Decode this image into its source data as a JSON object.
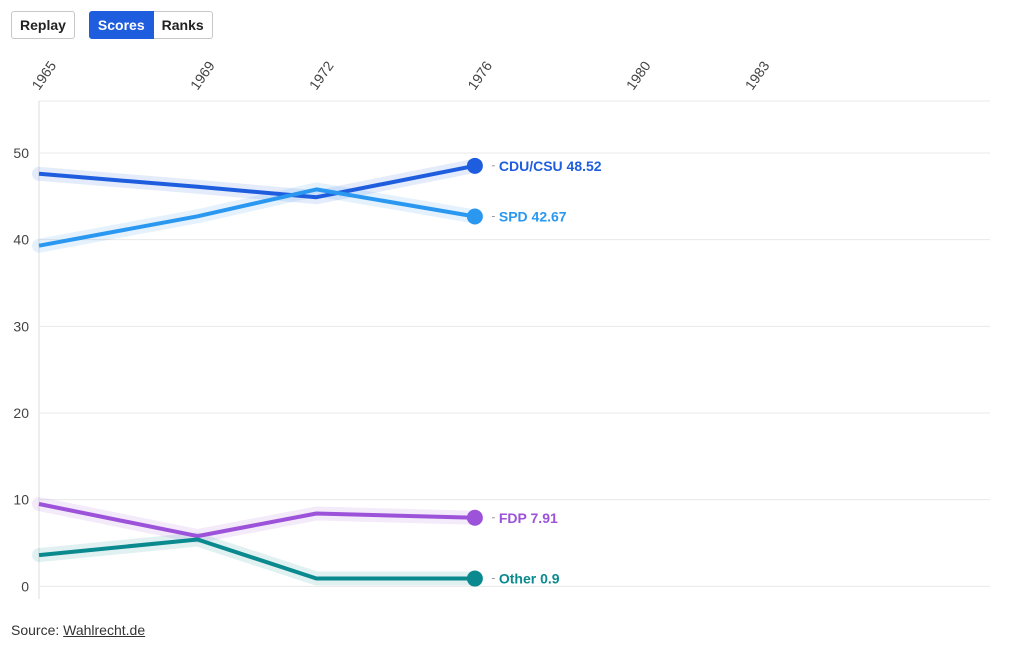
{
  "controls": {
    "replay_label": "Replay",
    "scores_label": "Scores",
    "ranks_label": "Ranks",
    "active_mode": "Scores"
  },
  "source": {
    "prefix": "Source: ",
    "link_text": "Wahlrecht.de"
  },
  "colors": {
    "accent": "#1f5ddf",
    "grid": "#e8e8e8",
    "axis_text": "#444444"
  },
  "chart_data": {
    "type": "line",
    "x_ticks": [
      1965,
      1969,
      1972,
      1976,
      1980,
      1983
    ],
    "y_ticks": [
      0,
      10,
      20,
      30,
      40,
      50
    ],
    "xlim": [
      1965,
      1989
    ],
    "ylim": [
      -1,
      56
    ],
    "grid": true,
    "legend": "end-of-line labels",
    "series": [
      {
        "name": "CDU/CSU",
        "color": "#1f5ddf",
        "label": "CDU/CSU 48.52",
        "points": [
          [
            1965,
            47.6
          ],
          [
            1969,
            46.1
          ],
          [
            1972,
            44.9
          ],
          [
            1976,
            48.52
          ]
        ]
      },
      {
        "name": "SPD",
        "color": "#2a98f0",
        "label": "SPD 42.67",
        "points": [
          [
            1965,
            39.3
          ],
          [
            1969,
            42.7
          ],
          [
            1972,
            45.8
          ],
          [
            1976,
            42.67
          ]
        ]
      },
      {
        "name": "FDP",
        "color": "#9c52d9",
        "label": "FDP 7.91",
        "points": [
          [
            1965,
            9.5
          ],
          [
            1969,
            5.8
          ],
          [
            1972,
            8.4
          ],
          [
            1976,
            7.91
          ]
        ]
      },
      {
        "name": "Other",
        "color": "#0a8a8f",
        "label": "Other 0.9",
        "points": [
          [
            1965,
            3.6
          ],
          [
            1969,
            5.4
          ],
          [
            1972,
            0.9
          ],
          [
            1976,
            0.9
          ]
        ]
      }
    ]
  }
}
